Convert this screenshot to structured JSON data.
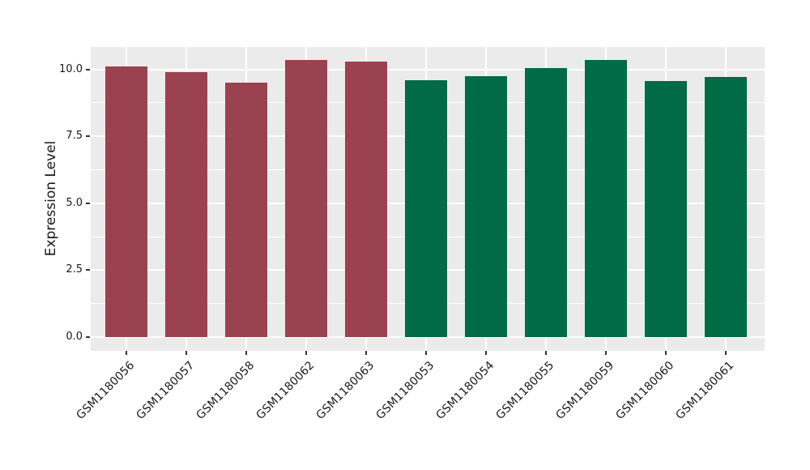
{
  "chart_data": {
    "type": "bar",
    "title": "",
    "xlabel": "",
    "ylabel": "Expression Level",
    "categories": [
      "GSM1180056",
      "GSM1180057",
      "GSM1180058",
      "GSM1180062",
      "GSM1180063",
      "GSM1180053",
      "GSM1180054",
      "GSM1180055",
      "GSM1180059",
      "GSM1180060",
      "GSM1180061"
    ],
    "values": [
      10.1,
      9.9,
      9.5,
      10.35,
      10.3,
      9.6,
      9.75,
      10.05,
      10.35,
      9.55,
      9.7
    ],
    "groups": [
      "red",
      "red",
      "red",
      "red",
      "red",
      "green",
      "green",
      "green",
      "green",
      "green",
      "green"
    ],
    "group_colors": {
      "red": "#9B4250",
      "green": "#006B46"
    },
    "ylim": [
      0,
      10.8
    ],
    "yticks": [
      0,
      2.5,
      5,
      7.5,
      10
    ],
    "ytick_labels": [
      "0.0",
      "2.5",
      "5.0",
      "7.5",
      "10.0"
    ],
    "yticks_minor": [
      1.25,
      3.75,
      6.25,
      8.75
    ],
    "x_label_angle": 45,
    "grid": true,
    "legend": false,
    "panel_background": "#EBEBEB",
    "grid_color": "#FFFFFF",
    "tick_color": "#333333",
    "text_color": "#1A1A1A"
  }
}
